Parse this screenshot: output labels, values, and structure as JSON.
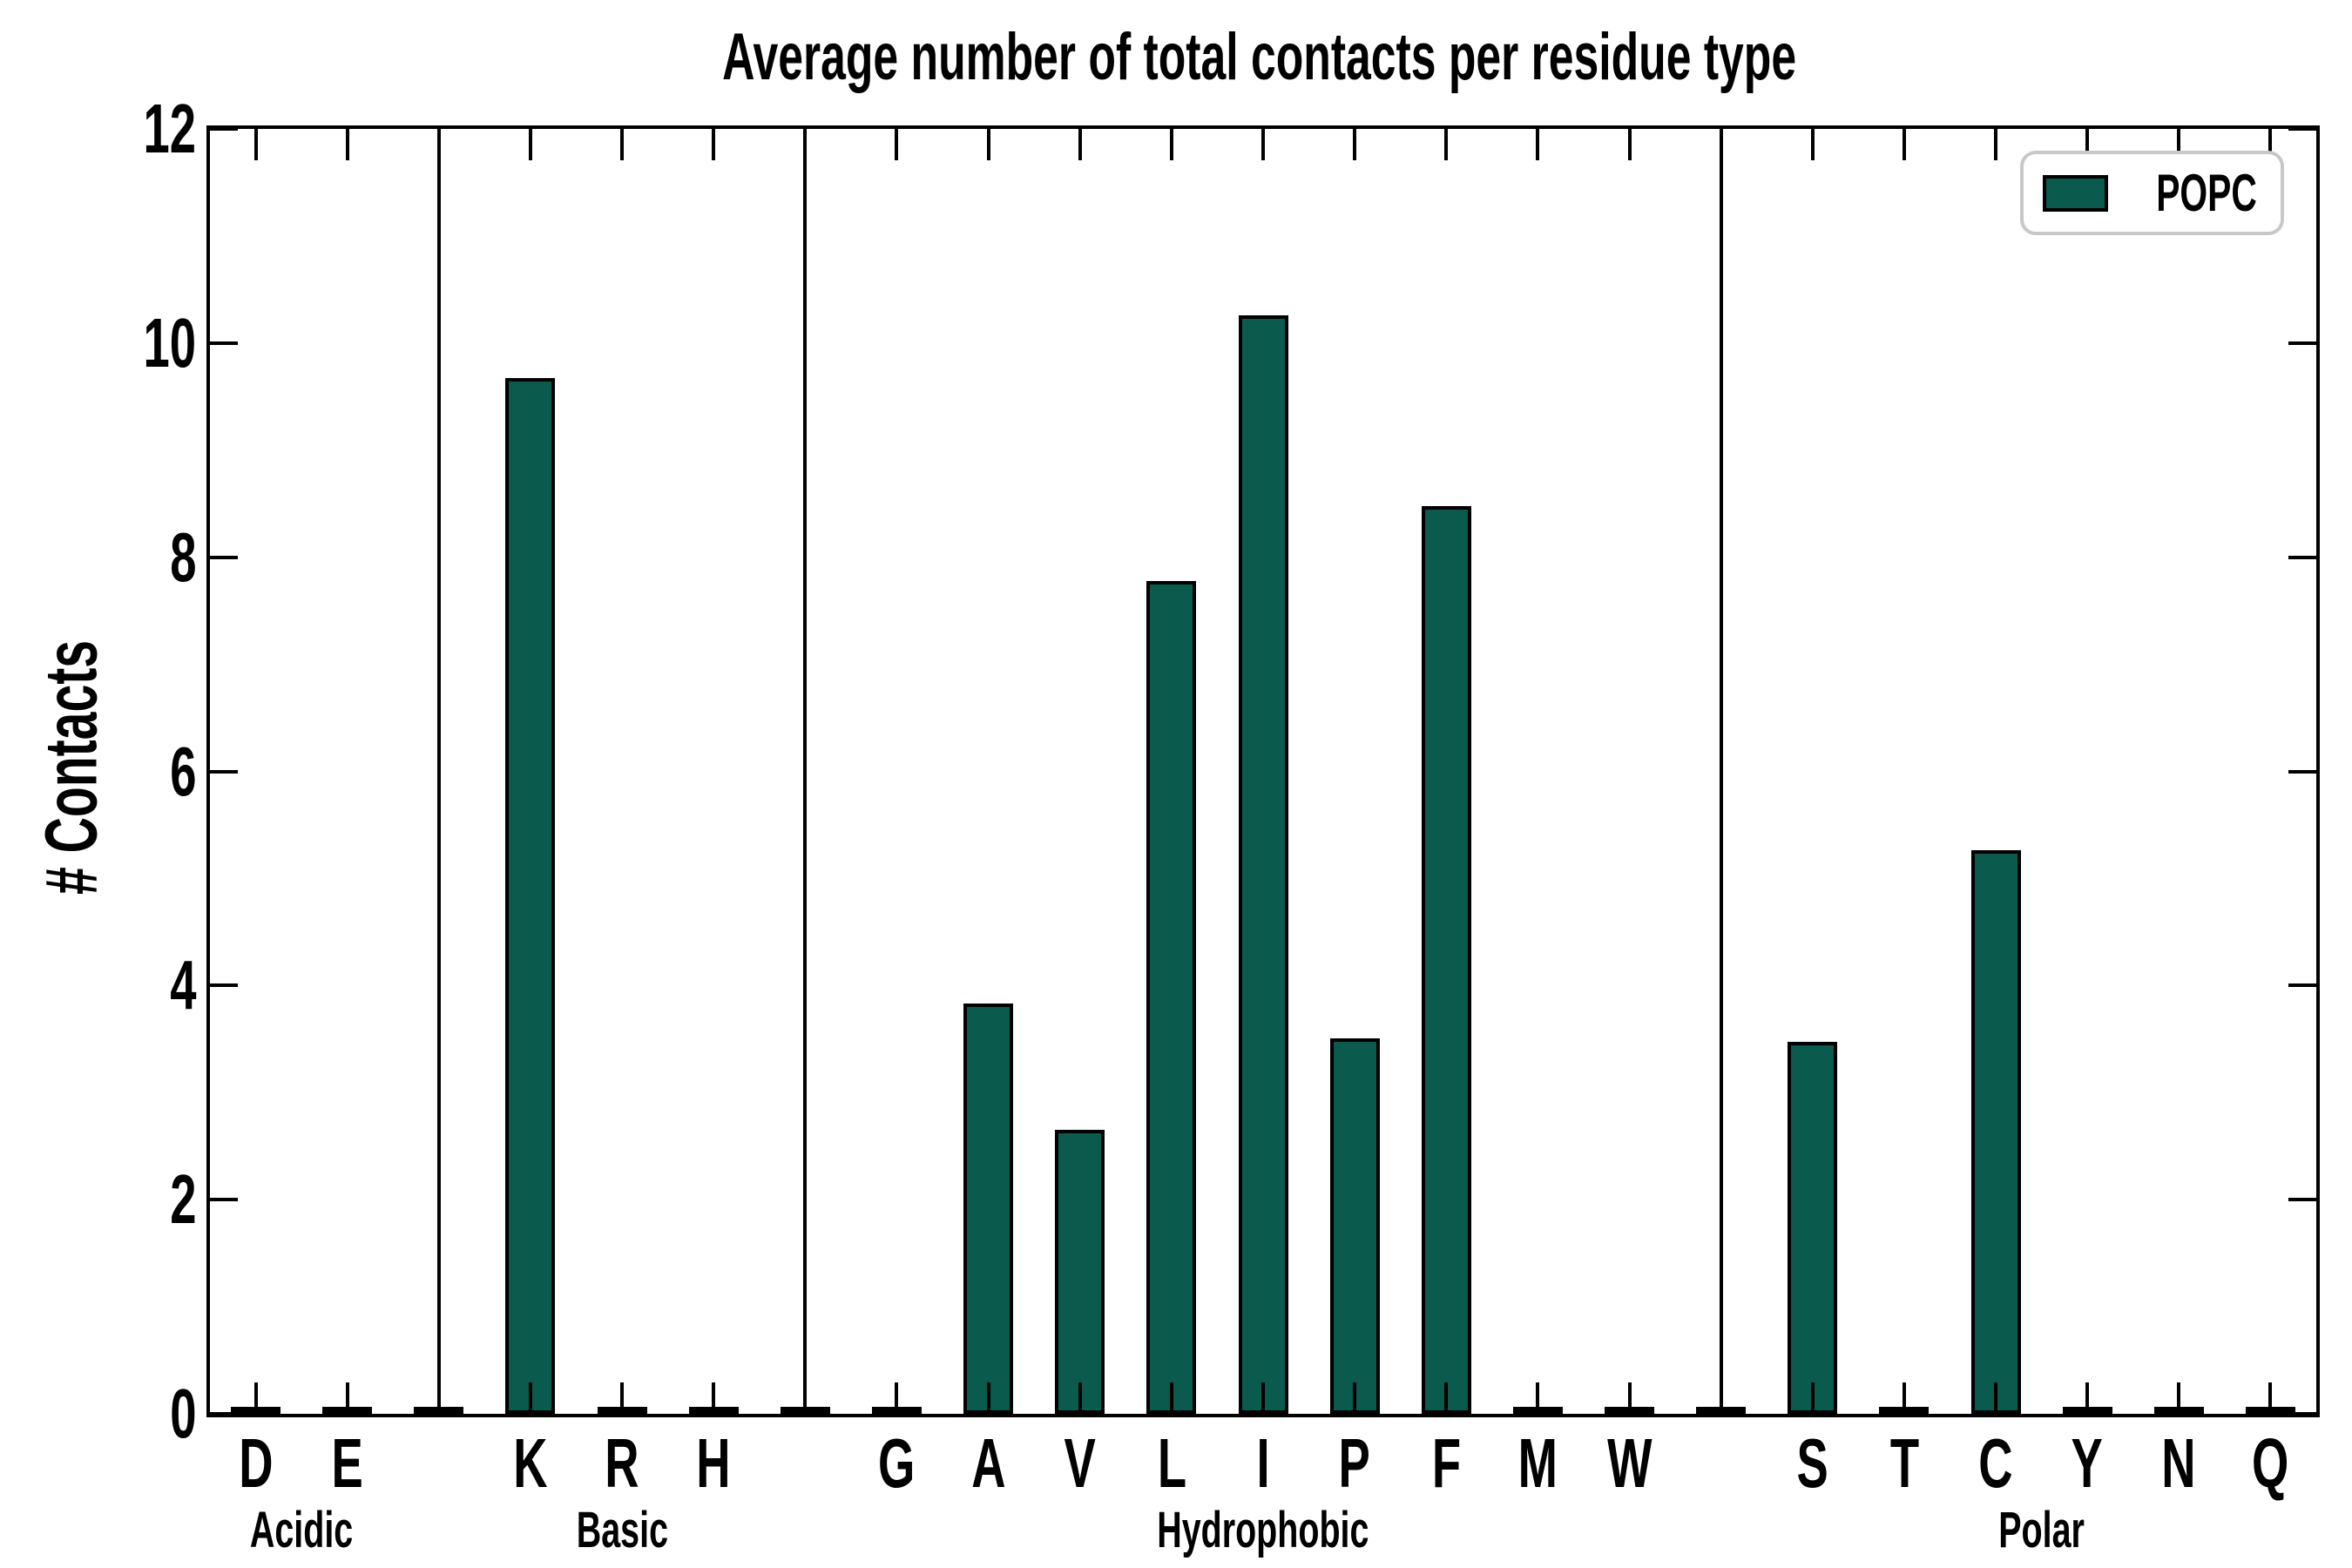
{
  "chart_data": {
    "type": "bar",
    "title": "Average number of total contacts per residue type",
    "ylabel": "# Contacts",
    "xlabel": "",
    "ylim": [
      0,
      12
    ],
    "yticks": [
      0,
      2,
      4,
      6,
      8,
      10,
      12
    ],
    "grid": false,
    "legend": {
      "label": "POPC",
      "position": "upper-right"
    },
    "colors": {
      "bar_fill": "#0a5a4d",
      "bar_edge": "#000000",
      "axis": "#000000",
      "text": "#000000",
      "legend_border": "#c8c8c8",
      "background": "#ffffff"
    },
    "spacer_value": 0.03,
    "categories": [
      "D",
      "E",
      "K",
      "R",
      "H",
      "G",
      "A",
      "V",
      "L",
      "I",
      "P",
      "F",
      "M",
      "W",
      "S",
      "T",
      "C",
      "Y",
      "N",
      "Q"
    ],
    "series": [
      {
        "name": "POPC",
        "values": [
          0.03,
          0.03,
          9.67,
          0.03,
          0.03,
          0.03,
          3.83,
          2.65,
          7.78,
          10.26,
          3.51,
          8.48,
          0.03,
          0.03,
          3.47,
          0.03,
          5.26,
          0.03,
          0.03,
          0.03
        ]
      }
    ],
    "groups": [
      {
        "label": "Acidic",
        "residues": [
          "D",
          "E"
        ],
        "values": [
          0.03,
          0.03
        ]
      },
      {
        "label": "Basic",
        "residues": [
          "K",
          "R",
          "H"
        ],
        "values": [
          9.67,
          0.03,
          0.03
        ]
      },
      {
        "label": "Hydrophobic",
        "residues": [
          "G",
          "A",
          "V",
          "L",
          "I",
          "P",
          "F",
          "M",
          "W"
        ],
        "values": [
          0.03,
          3.83,
          2.65,
          7.78,
          10.26,
          3.51,
          8.48,
          0.03,
          0.03
        ]
      },
      {
        "label": "Polar",
        "residues": [
          "S",
          "T",
          "C",
          "Y",
          "N",
          "Q"
        ],
        "values": [
          3.47,
          0.03,
          5.26,
          0.03,
          0.03,
          0.03
        ]
      }
    ]
  }
}
